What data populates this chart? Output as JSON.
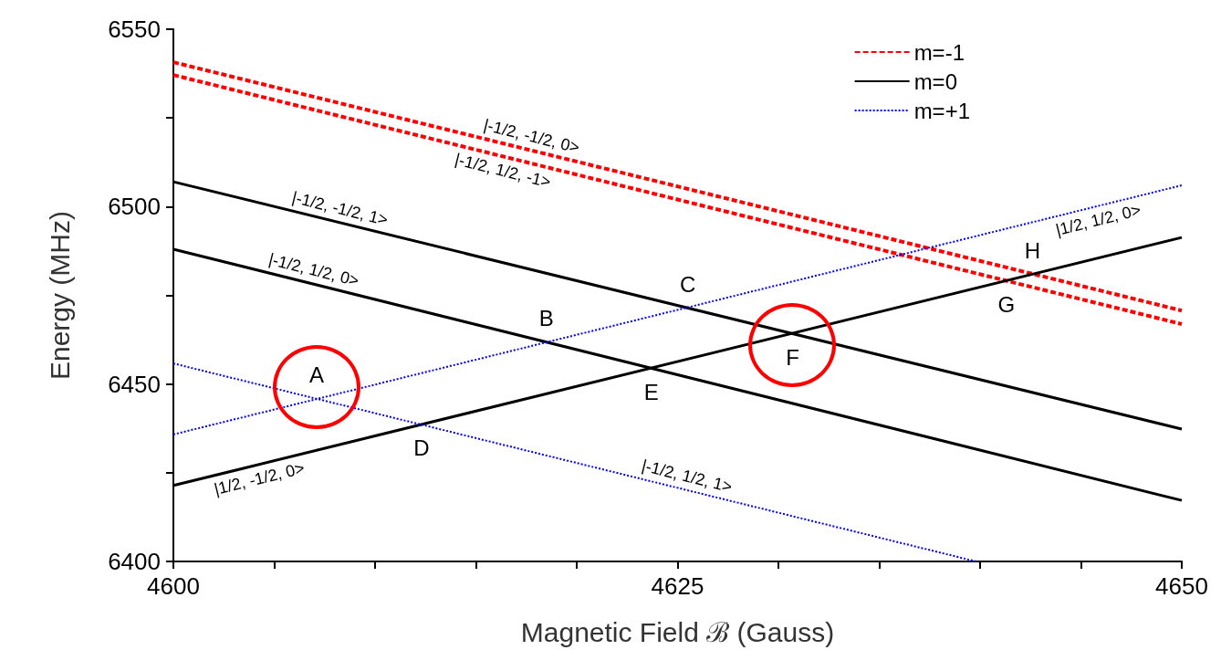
{
  "chart_data": {
    "type": "line",
    "xlabel": "Magnetic Field ℬ (Gauss)",
    "ylabel": "Energy (MHz)",
    "xlim": [
      4600,
      4650
    ],
    "xticks": [
      4600,
      {
        "value": 4605,
        "label": null
      },
      {
        "value": 4610,
        "label": null
      },
      {
        "value": 4615,
        "label": null
      },
      {
        "value": 4620,
        "label": null
      },
      4625,
      {
        "value": 4630,
        "label": null
      },
      {
        "value": 4635,
        "label": null
      },
      {
        "value": 4640,
        "label": null
      },
      {
        "value": 4645,
        "label": null
      },
      4650
    ],
    "ylim": [
      6400,
      6550
    ],
    "yticks": [
      6400,
      {
        "value": 6425,
        "label": null
      },
      6450,
      {
        "value": 6475,
        "label": null
      },
      6500,
      {
        "value": 6525,
        "label": null
      },
      6550
    ],
    "grid": false,
    "legend": "top right",
    "marker": "none",
    "series": [
      {
        "name": "m=-1",
        "color": "#ff0000",
        "line_style": "dashed",
        "x": [
          4600,
          4650
        ],
        "values": [
          6540.7,
          6470.7
        ]
      },
      {
        "color": "#ff0000",
        "line_style": "dashed",
        "x": [
          4600,
          4650
        ],
        "values": [
          6537.1,
          6466.9
        ]
      },
      {
        "name": "m=0",
        "color": "#000000",
        "line_style": "solid",
        "x": [
          4600,
          4650
        ],
        "values": [
          6507.0,
          6437.3
        ]
      },
      {
        "color": "#000000",
        "line_style": "solid",
        "x": [
          4600,
          4650
        ],
        "values": [
          6488.0,
          6417.2
        ]
      },
      {
        "color": "#000000",
        "line_style": "solid",
        "x": [
          4600,
          4650
        ],
        "values": [
          6421.4,
          6491.3
        ]
      },
      {
        "name": "m=+1",
        "color": "#0000ff",
        "line_style": "dotted",
        "x": [
          4600,
          4650
        ],
        "values": [
          6435.8,
          6506.0
        ]
      },
      {
        "color": "#0000ff",
        "line_style": "dotted",
        "x": [
          4600,
          4639.8
        ],
        "values": [
          6455.8,
          6400
        ]
      }
    ],
    "annotations": [
      {
        "text": "A",
        "x": 4607.1,
        "y": 6445.8
      },
      {
        "text": "B",
        "x": 4618.5,
        "y": 6461.8
      },
      {
        "text": "C",
        "x": 4625.5,
        "y": 6471.5
      },
      {
        "text": "D",
        "x": 4612.3,
        "y": 6438.6
      },
      {
        "text": "E",
        "x": 4623.7,
        "y": 6454.5
      },
      {
        "text": "F",
        "x": 4630.7,
        "y": 6464.3
      },
      {
        "text": "G",
        "x": 4641.3,
        "y": 6479.1
      },
      {
        "text": "H",
        "x": 4642.6,
        "y": 6481.0
      },
      {
        "text": "|-1/2, -1/2, 0>",
        "x": 4617.6,
        "y": 6516.1
      },
      {
        "text": "|-1/2, 1/2, -1>",
        "x": 4616.5,
        "y": 6513.9
      },
      {
        "text": "|-1/2, -1/2, 1>",
        "x": 4608.1,
        "y": 6495.7
      },
      {
        "text": "|-1/2, 1/2, 0>",
        "x": 4606.8,
        "y": 6478.4
      },
      {
        "text": "|1/2, -1/2, 0>",
        "x": 4604.1,
        "y": 6427.1
      },
      {
        "text": "|-1/2, 1/2, 1>",
        "x": 4625.3,
        "y": 6420.3
      },
      {
        "text": "|1/2, 1/2, 0>",
        "x": 4645.7,
        "y": 6500.0
      }
    ]
  }
}
